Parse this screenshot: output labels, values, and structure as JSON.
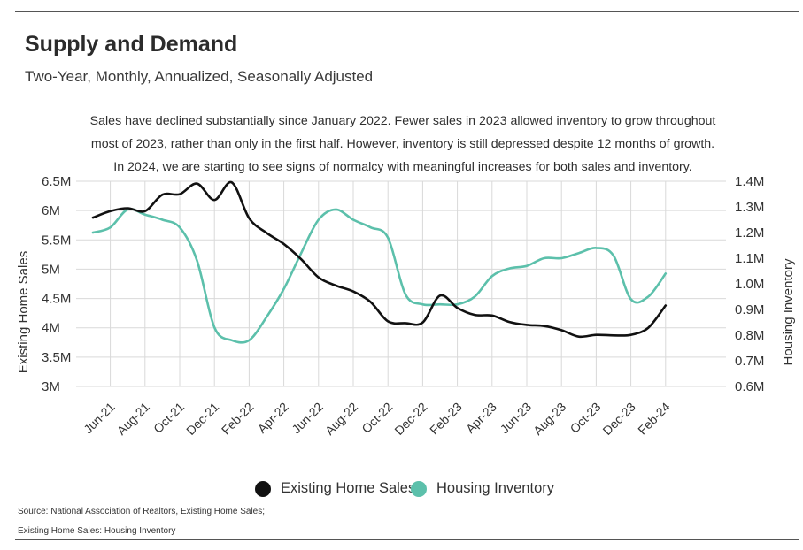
{
  "title": "Supply and Demand",
  "subtitle": "Two-Year, Monthly, Annualized, Seasonally Adjusted",
  "description": [
    "Sales have declined substantially since January 2022. Fewer sales in 2023 allowed inventory to grow throughout",
    "most of 2023, rather than only in the first half. However, inventory is still depressed despite 12 months of growth.",
    "In 2024, we are starting to see signs of normalcy with meaningful increases for both sales and inventory."
  ],
  "source_lines": [
    "Source:  National Association of Realtors, Existing Home Sales;",
    "Existing Home Sales: Housing Inventory"
  ],
  "colors": {
    "sales": "#111111",
    "inventory": "#5cc0ab",
    "grid": "#d9d9d9",
    "text": "#333333"
  },
  "chart_data": {
    "type": "line",
    "ylabel_left": "Existing Home Sales",
    "ylabel_right": "Housing Inventory",
    "y_left_ticks": [
      "3M",
      "3.5M",
      "4M",
      "4.5M",
      "5M",
      "5.5M",
      "6M",
      "6.5M"
    ],
    "y_right_ticks": [
      "0.6M",
      "0.7M",
      "0.8M",
      "0.9M",
      "1.0M",
      "1.1M",
      "1.2M",
      "1.3M",
      "1.4M"
    ],
    "ylim_left": [
      3.0,
      6.5
    ],
    "ylim_right": [
      0.6,
      1.4
    ],
    "grid": true,
    "legend_position": "bottom",
    "x_tick_labels": [
      "Jun-21",
      "Aug-21",
      "Oct-21",
      "Dec-21",
      "Feb-22",
      "Apr-22",
      "Jun-22",
      "Aug-22",
      "Oct-22",
      "Dec-22",
      "Feb-23",
      "Apr-23",
      "Jun-23",
      "Aug-23",
      "Oct-23",
      "Dec-23",
      "Feb-24"
    ],
    "x": [
      "May-21",
      "Jun-21",
      "Jul-21",
      "Aug-21",
      "Sep-21",
      "Oct-21",
      "Nov-21",
      "Dec-21",
      "Jan-22",
      "Feb-22",
      "Mar-22",
      "Apr-22",
      "May-22",
      "Jun-22",
      "Jul-22",
      "Aug-22",
      "Sep-22",
      "Oct-22",
      "Nov-22",
      "Dec-22",
      "Jan-23",
      "Feb-23",
      "Mar-23",
      "Apr-23",
      "May-23",
      "Jun-23",
      "Jul-23",
      "Aug-23",
      "Sep-23",
      "Oct-23",
      "Nov-23",
      "Dec-23",
      "Jan-24",
      "Feb-24"
    ],
    "series": [
      {
        "name": "Existing Home Sales",
        "axis": "left",
        "values": [
          5.88,
          5.99,
          6.04,
          5.99,
          6.27,
          6.28,
          6.46,
          6.18,
          6.48,
          5.87,
          5.62,
          5.43,
          5.17,
          4.86,
          4.72,
          4.62,
          4.44,
          4.11,
          4.08,
          4.09,
          4.55,
          4.34,
          4.22,
          4.21,
          4.1,
          4.05,
          4.03,
          3.96,
          3.85,
          3.88,
          3.87,
          3.88,
          4.0,
          4.38
        ]
      },
      {
        "name": "Housing Inventory",
        "axis": "right",
        "values": [
          1.2,
          1.22,
          1.29,
          1.27,
          1.25,
          1.22,
          1.09,
          0.83,
          0.78,
          0.78,
          0.87,
          0.98,
          1.12,
          1.25,
          1.29,
          1.25,
          1.22,
          1.18,
          0.96,
          0.92,
          0.92,
          0.92,
          0.95,
          1.03,
          1.06,
          1.07,
          1.1,
          1.1,
          1.12,
          1.14,
          1.11,
          0.94,
          0.95,
          1.04
        ]
      }
    ]
  }
}
